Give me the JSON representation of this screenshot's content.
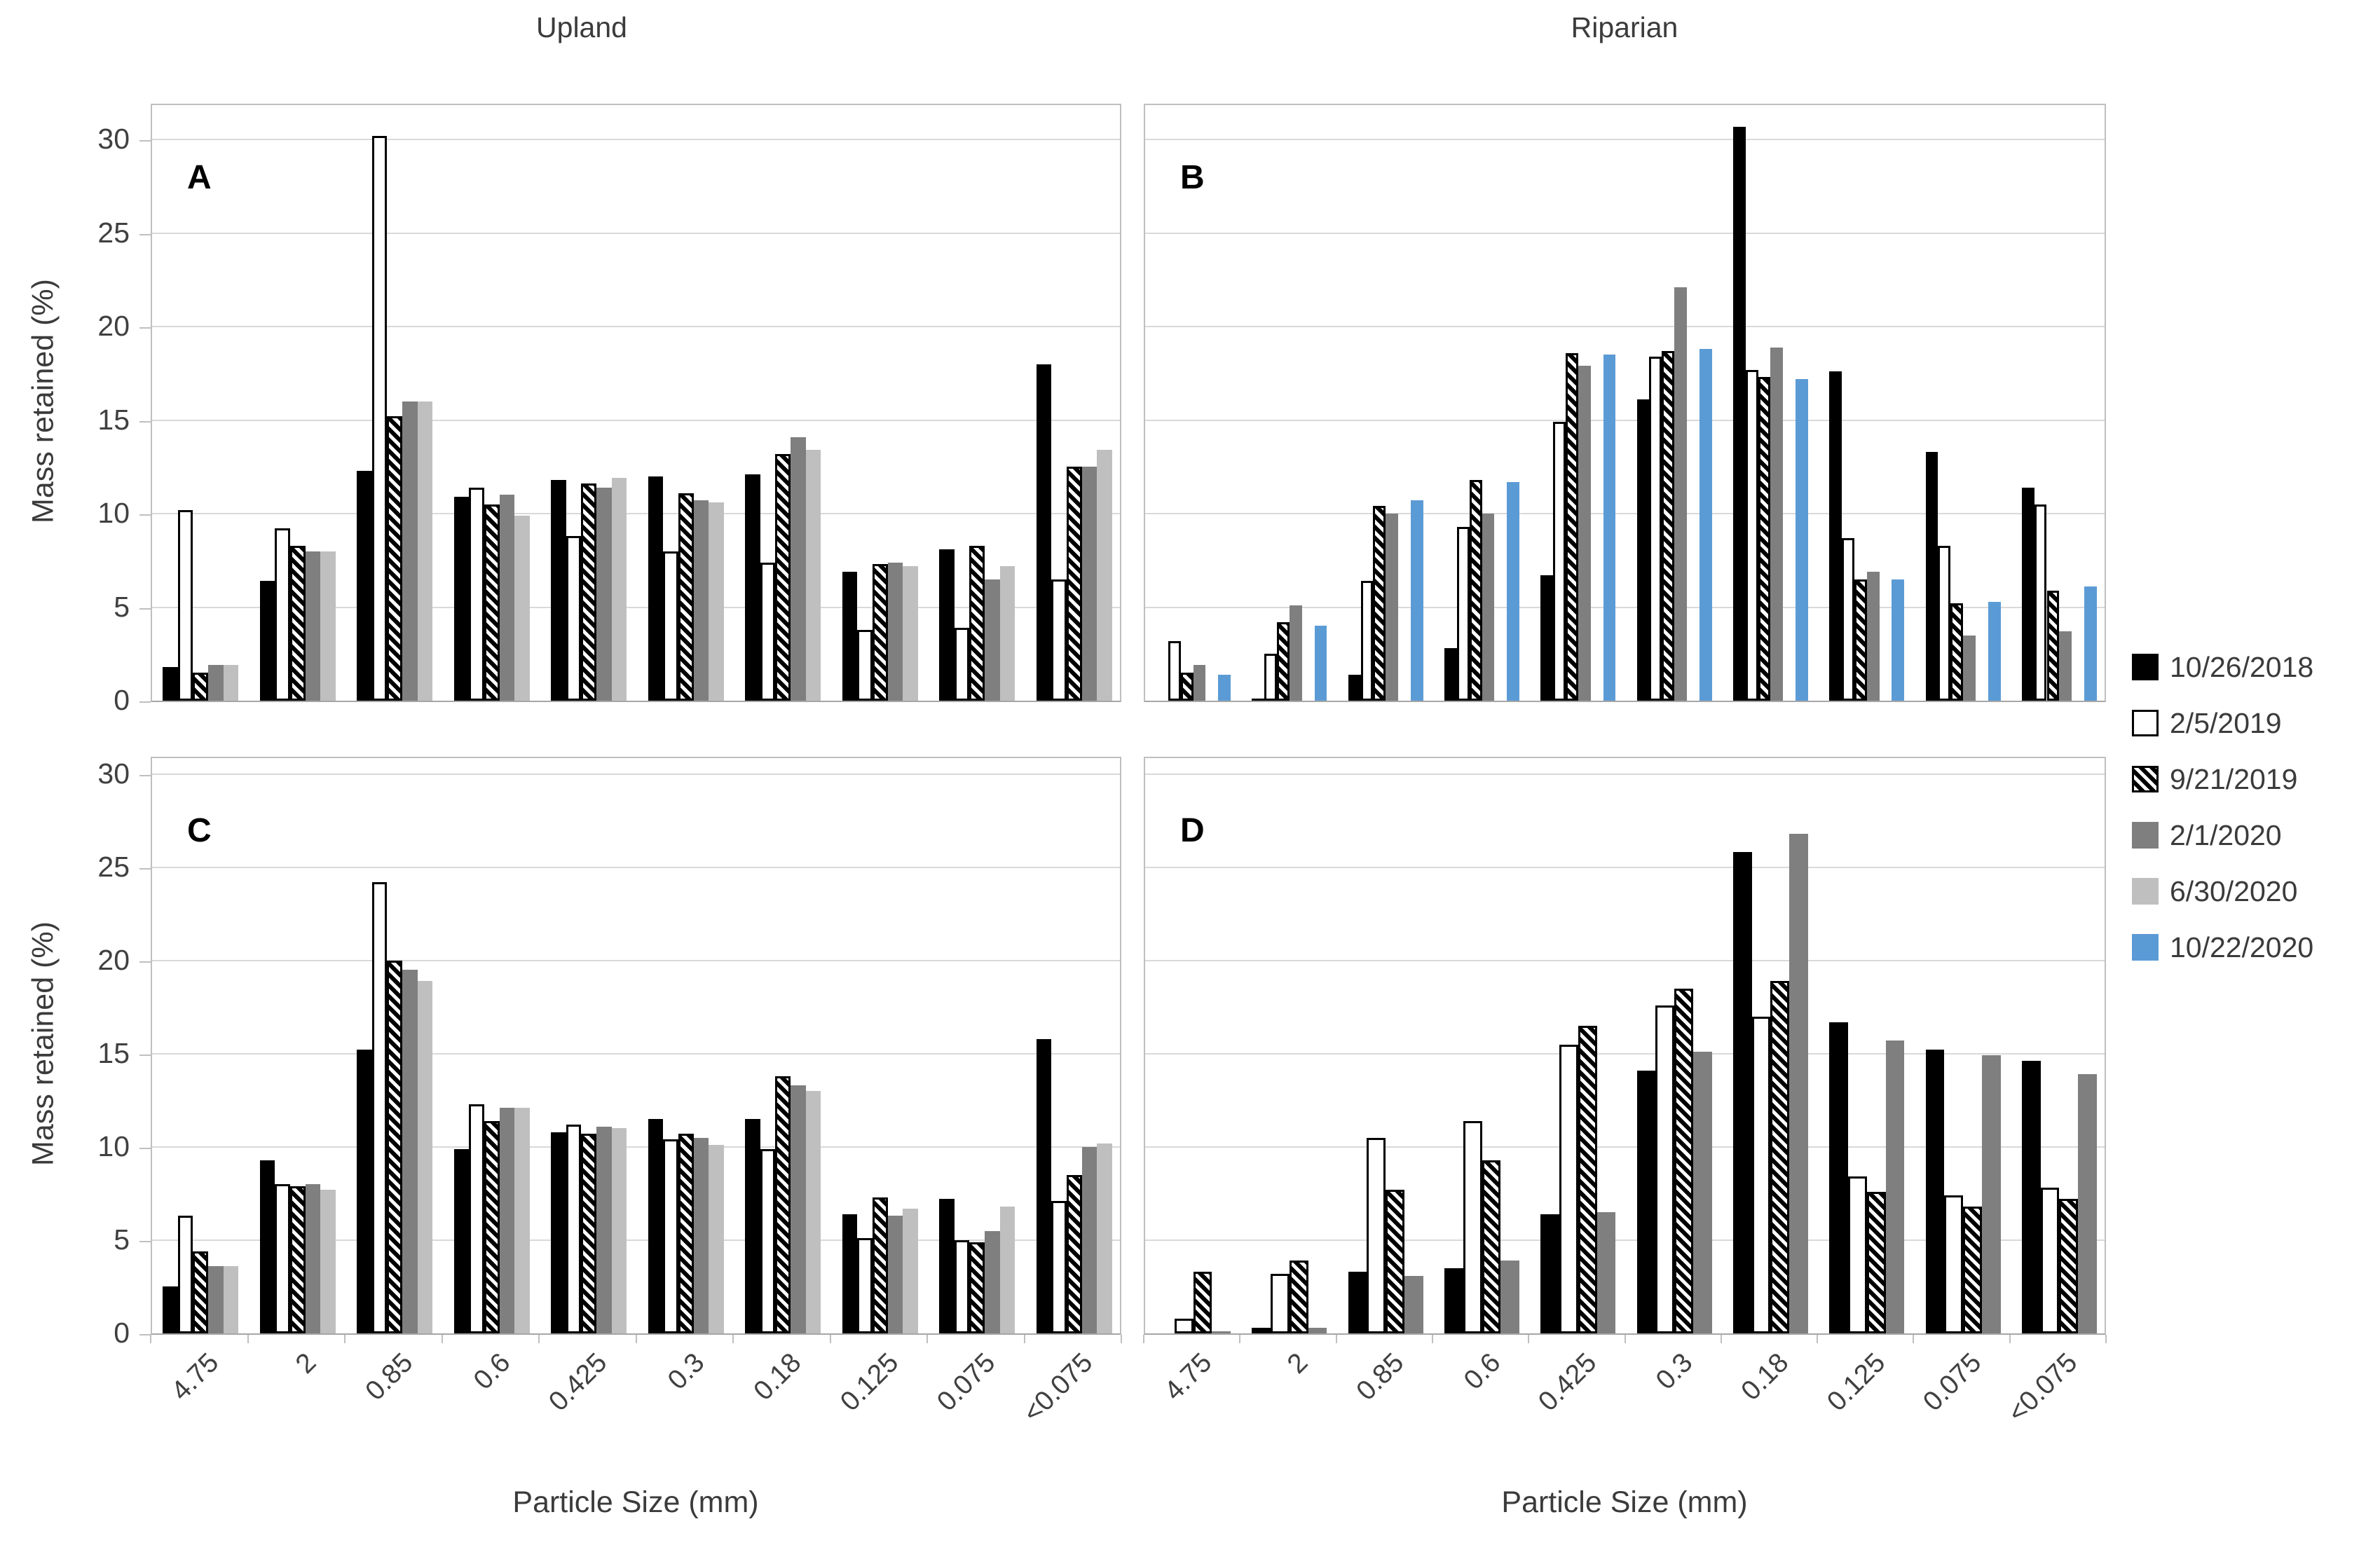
{
  "column_titles": [
    "Upland",
    "Riparian"
  ],
  "axes": {
    "y_title": "Mass retained (%)",
    "x_title": "Particle Size (mm)",
    "y_ticks": [
      0,
      5,
      10,
      15,
      20,
      25,
      30
    ],
    "y_max": 30
  },
  "colors": {
    "black": "#000000",
    "white": "#ffffff",
    "darkgray": "#7f7f7f",
    "lightgray": "#bfbfbf",
    "blue": "#5b9bd5",
    "grid": "#d9d9d9",
    "border": "#bfbfbf",
    "text": "#404040"
  },
  "legend": {
    "position": "right",
    "items": [
      {
        "label": "10/26/2018",
        "pattern": "black"
      },
      {
        "label": "2/5/2019",
        "pattern": "white"
      },
      {
        "label": "9/21/2019",
        "pattern": "hatch"
      },
      {
        "label": "2/1/2020",
        "pattern": "darkgray"
      },
      {
        "label": "6/30/2020",
        "pattern": "lightgray"
      },
      {
        "label": "10/22/2020",
        "pattern": "blue"
      }
    ]
  },
  "chart_data": [
    {
      "type": "bar",
      "panel_label": "A",
      "column": "Upland",
      "ylim": [
        0,
        30
      ],
      "grid": true,
      "categories": [
        "4.75",
        "2",
        "0.85",
        "0.6",
        "0.425",
        "0.3",
        "0.18",
        "0.125",
        "0.075",
        "<0.075"
      ],
      "series": [
        {
          "name": "10/26/2018",
          "pattern": "black",
          "values": [
            1.8,
            6.4,
            12.3,
            10.9,
            11.8,
            12.0,
            12.1,
            6.9,
            8.1,
            18.0
          ]
        },
        {
          "name": "2/5/2019",
          "pattern": "white",
          "values": [
            10.2,
            9.2,
            30.2,
            11.4,
            8.8,
            8.0,
            7.4,
            3.8,
            3.9,
            6.5
          ]
        },
        {
          "name": "9/21/2019",
          "pattern": "hatch",
          "values": [
            1.5,
            8.3,
            15.2,
            10.5,
            11.6,
            11.1,
            13.2,
            7.3,
            8.3,
            12.5
          ]
        },
        {
          "name": "2/1/2020",
          "pattern": "darkgray",
          "values": [
            1.9,
            8.0,
            16.0,
            11.0,
            11.4,
            10.7,
            14.1,
            7.4,
            6.5,
            12.5
          ]
        },
        {
          "name": "6/30/2020",
          "pattern": "lightgray",
          "values": [
            1.9,
            8.0,
            16.0,
            9.9,
            11.9,
            10.6,
            13.4,
            7.2,
            7.2,
            13.4
          ]
        }
      ]
    },
    {
      "type": "bar",
      "panel_label": "B",
      "column": "Riparian",
      "ylim": [
        0,
        30
      ],
      "grid": true,
      "categories": [
        "4.75",
        "2",
        "0.85",
        "0.6",
        "0.425",
        "0.3",
        "0.18",
        "0.125",
        "0.075",
        "<0.075"
      ],
      "series": [
        {
          "name": "10/26/2018",
          "pattern": "black",
          "values": [
            0,
            0.1,
            1.4,
            2.8,
            6.7,
            16.1,
            30.7,
            17.6,
            13.3,
            11.4
          ]
        },
        {
          "name": "2/5/2019",
          "pattern": "white",
          "values": [
            3.2,
            2.5,
            6.4,
            9.3,
            14.9,
            18.4,
            17.7,
            8.7,
            8.3,
            10.5
          ]
        },
        {
          "name": "9/21/2019",
          "pattern": "hatch",
          "values": [
            1.5,
            4.2,
            10.4,
            11.8,
            18.6,
            18.7,
            17.3,
            6.5,
            5.2,
            5.9
          ]
        },
        {
          "name": "2/1/2020",
          "pattern": "darkgray",
          "values": [
            1.9,
            5.1,
            10.0,
            10.0,
            17.9,
            22.1,
            18.9,
            6.9,
            3.5,
            3.7
          ]
        },
        {
          "name": "6/30/2020",
          "pattern": "lightgray",
          "values": [
            0,
            0,
            0,
            0,
            0,
            0,
            0,
            0,
            0,
            0
          ]
        },
        {
          "name": "10/22/2020",
          "pattern": "blue",
          "values": [
            1.4,
            4.0,
            10.7,
            11.7,
            18.5,
            18.8,
            17.2,
            6.5,
            5.3,
            6.1
          ]
        }
      ]
    },
    {
      "type": "bar",
      "panel_label": "C",
      "column": "Upland",
      "ylim": [
        0,
        30
      ],
      "grid": true,
      "categories": [
        "4.75",
        "2",
        "0.85",
        "0.6",
        "0.425",
        "0.3",
        "0.18",
        "0.125",
        "0.075",
        "<0.075"
      ],
      "series": [
        {
          "name": "10/26/2018",
          "pattern": "black",
          "values": [
            2.5,
            9.3,
            15.2,
            9.9,
            10.8,
            11.5,
            11.5,
            6.4,
            7.2,
            15.8
          ]
        },
        {
          "name": "2/5/2019",
          "pattern": "white",
          "values": [
            6.3,
            8.0,
            24.2,
            12.3,
            11.2,
            10.4,
            9.9,
            5.1,
            5.0,
            7.1
          ]
        },
        {
          "name": "9/21/2019",
          "pattern": "hatch",
          "values": [
            4.4,
            7.9,
            20.0,
            11.4,
            10.7,
            10.7,
            13.8,
            7.3,
            4.9,
            8.5
          ]
        },
        {
          "name": "2/1/2020",
          "pattern": "darkgray",
          "values": [
            3.6,
            8.0,
            19.5,
            12.1,
            11.1,
            10.5,
            13.3,
            6.3,
            5.5,
            10.0
          ]
        },
        {
          "name": "6/30/2020",
          "pattern": "lightgray",
          "values": [
            3.6,
            7.7,
            18.9,
            12.1,
            11.0,
            10.1,
            13.0,
            6.7,
            6.8,
            10.2
          ]
        }
      ]
    },
    {
      "type": "bar",
      "panel_label": "D",
      "column": "Riparian",
      "ylim": [
        0,
        30
      ],
      "grid": true,
      "categories": [
        "4.75",
        "2",
        "0.85",
        "0.6",
        "0.425",
        "0.3",
        "0.18",
        "0.125",
        "0.075",
        "<0.075"
      ],
      "series": [
        {
          "name": "10/26/2018",
          "pattern": "black",
          "values": [
            0,
            0.3,
            3.3,
            3.5,
            6.4,
            14.1,
            25.8,
            16.7,
            15.2,
            14.6
          ]
        },
        {
          "name": "2/5/2019",
          "pattern": "white",
          "values": [
            0.8,
            3.2,
            10.5,
            11.4,
            15.5,
            17.6,
            17.0,
            8.4,
            7.4,
            7.8
          ]
        },
        {
          "name": "9/21/2019",
          "pattern": "hatch",
          "values": [
            3.3,
            3.9,
            7.7,
            9.3,
            16.5,
            18.5,
            18.9,
            7.6,
            6.8,
            7.2
          ]
        },
        {
          "name": "2/1/2020",
          "pattern": "darkgray",
          "values": [
            0.1,
            0.3,
            3.1,
            3.9,
            6.5,
            15.1,
            26.8,
            15.7,
            14.9,
            13.9
          ]
        }
      ]
    }
  ]
}
